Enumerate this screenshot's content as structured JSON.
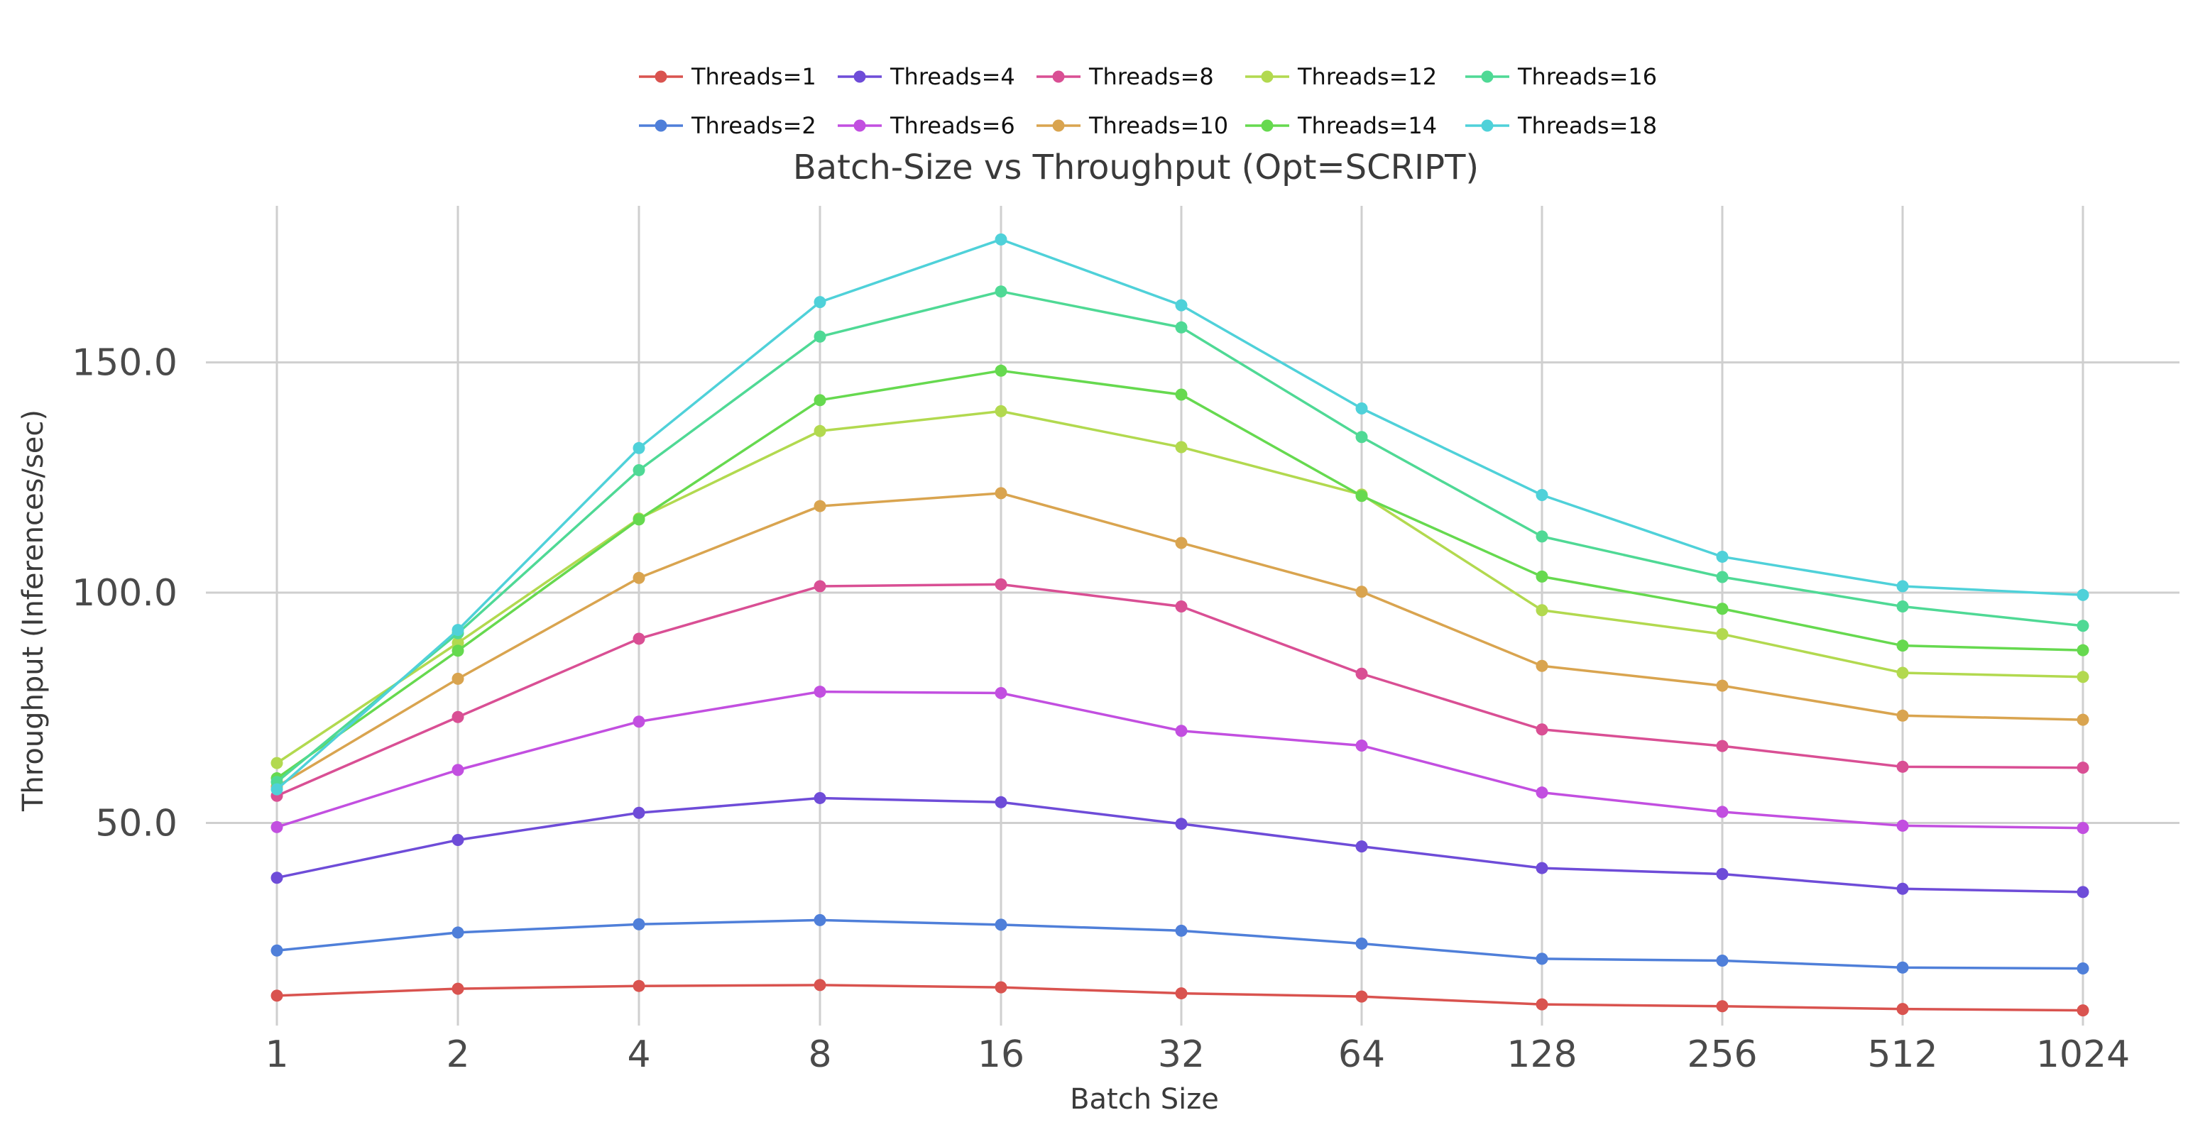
{
  "chart_data": {
    "type": "line",
    "title": "Batch-Size vs Throughput (Opt=SCRIPT)",
    "xlabel": "Batch Size",
    "ylabel": "Throughput (Inferences/sec)",
    "categories": [
      "1",
      "2",
      "4",
      "8",
      "16",
      "32",
      "64",
      "128",
      "256",
      "512",
      "1024"
    ],
    "y_ticks": [
      "50.0",
      "100.0",
      "150.0"
    ],
    "ylim": [
      6,
      184
    ],
    "grid": true,
    "legend_position": "top-center",
    "series": [
      {
        "name": "Threads=1",
        "color": "#d9534f",
        "values": [
          12.5,
          14.0,
          14.6,
          14.8,
          14.3,
          13.0,
          12.3,
          10.6,
          10.2,
          9.6,
          9.3
        ]
      },
      {
        "name": "Threads=2",
        "color": "#4f7fd9",
        "values": [
          22.3,
          26.2,
          28.0,
          28.9,
          27.9,
          26.6,
          23.8,
          20.5,
          20.1,
          18.6,
          18.4
        ]
      },
      {
        "name": "Threads=4",
        "color": "#6e4cd8",
        "values": [
          38.1,
          46.3,
          52.2,
          55.4,
          54.5,
          49.8,
          44.9,
          40.2,
          38.9,
          35.7,
          35.0
        ]
      },
      {
        "name": "Threads=6",
        "color": "#c24fe0",
        "values": [
          49.1,
          61.5,
          72.0,
          78.5,
          78.2,
          70.0,
          66.8,
          56.6,
          52.4,
          49.4,
          48.9
        ]
      },
      {
        "name": "Threads=8",
        "color": "#d94f94",
        "values": [
          55.9,
          73.0,
          90.0,
          101.4,
          101.8,
          97.0,
          82.4,
          70.3,
          66.7,
          62.2,
          62.0
        ]
      },
      {
        "name": "Threads=10",
        "color": "#d9a44f",
        "values": [
          57.9,
          81.3,
          103.2,
          118.8,
          121.6,
          110.8,
          100.2,
          84.1,
          79.8,
          73.3,
          72.4
        ]
      },
      {
        "name": "Threads=12",
        "color": "#b2d94f",
        "values": [
          63.0,
          89.1,
          116.1,
          135.1,
          139.4,
          131.6,
          121.3,
          96.2,
          91.0,
          82.6,
          81.7
        ]
      },
      {
        "name": "Threads=14",
        "color": "#66d94f",
        "values": [
          59.7,
          87.4,
          115.9,
          141.8,
          148.2,
          143.0,
          121.0,
          103.5,
          96.5,
          88.5,
          87.5
        ]
      },
      {
        "name": "Threads=16",
        "color": "#4fd995",
        "values": [
          58.9,
          91.2,
          126.6,
          155.6,
          165.4,
          157.6,
          133.8,
          112.2,
          103.4,
          97.0,
          92.8
        ]
      },
      {
        "name": "Threads=18",
        "color": "#4fd1d9",
        "values": [
          57.3,
          91.9,
          131.4,
          163.1,
          176.7,
          162.4,
          140.0,
          121.2,
          107.8,
          101.4,
          99.5
        ]
      }
    ]
  }
}
